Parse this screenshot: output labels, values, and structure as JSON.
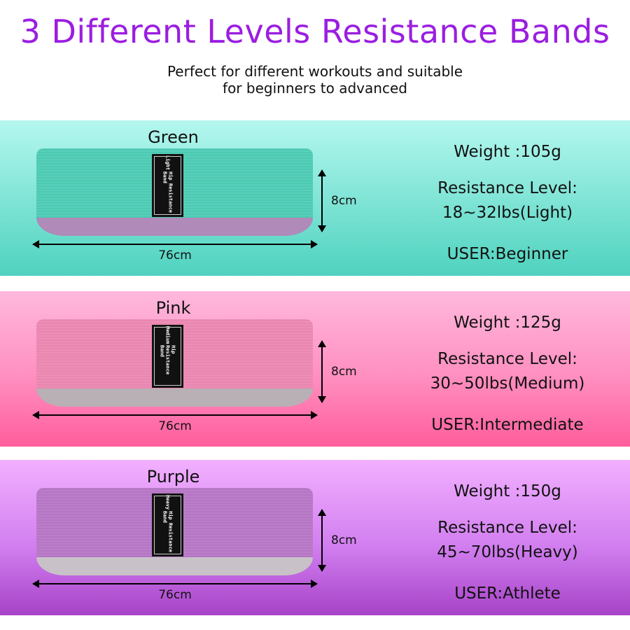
{
  "title": "3 Different Levels Resistance Bands",
  "subtitle": [
    "Perfect for different workouts and suitable",
    "for beginners to advanced"
  ],
  "bands": [
    {
      "name": "Green",
      "tag_level": "Light",
      "tag_text": "Hip Resistance Band",
      "length": "76cm",
      "width": "8cm",
      "weight": "Weight :105g",
      "resistance_label": "Resistance Level:",
      "resistance": "18~32lbs(Light)",
      "user": "USER:Beginner",
      "color": "#4ccab3",
      "inner_color": "#b08ab8"
    },
    {
      "name": "Pink",
      "tag_level": "Medium",
      "tag_text": "Hip Resistance Band",
      "length": "76cm",
      "width": "8cm",
      "weight": "Weight :125g",
      "resistance_label": "Resistance Level:",
      "resistance": "30~50lbs(Medium)",
      "user": "USER:Intermediate",
      "color": "#ea86b0",
      "inner_color": "#b8b0b4"
    },
    {
      "name": "Purple",
      "tag_level": "Heavy",
      "tag_text": "Hip Resistance Band",
      "length": "76cm",
      "width": "8cm",
      "weight": "Weight :150g",
      "resistance_label": "Resistance Level:",
      "resistance": "45~70lbs(Heavy)",
      "user": "USER:Athlete",
      "color": "#b574c4",
      "inner_color": "#c8c2c8"
    }
  ]
}
